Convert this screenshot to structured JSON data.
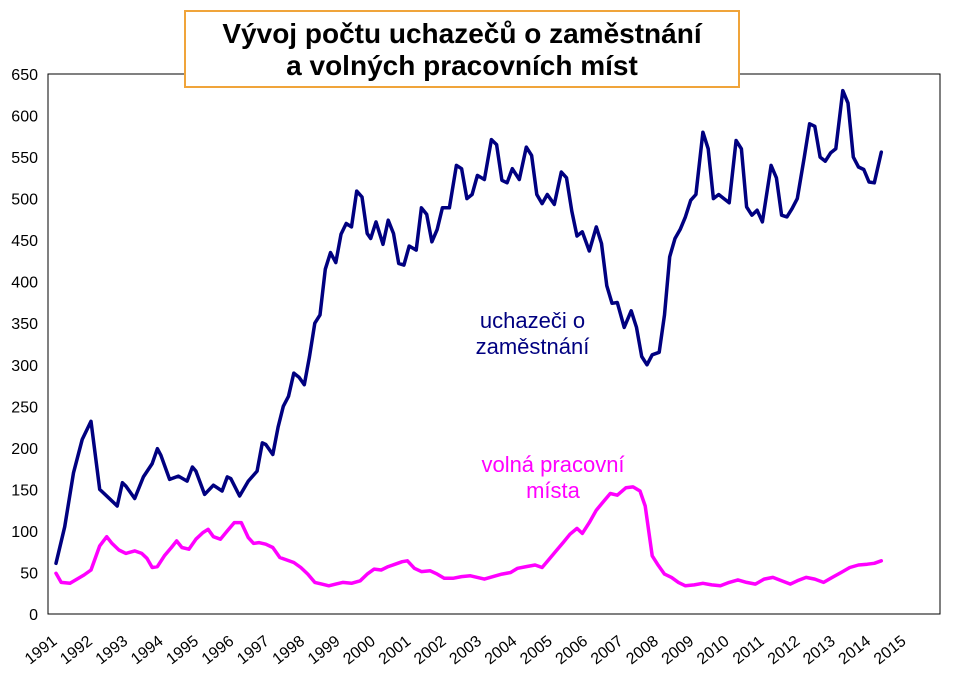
{
  "chart_data": {
    "type": "line",
    "title_lines": [
      "Vývoj počtu uchazečů o zaměstnání",
      "a volných pracovních míst"
    ],
    "xlabel": "",
    "ylabel": "",
    "ylim": [
      0,
      650
    ],
    "yticks": [
      0,
      50,
      100,
      150,
      200,
      250,
      300,
      350,
      400,
      450,
      500,
      550,
      600,
      650
    ],
    "x_tick_labels": [
      "1991",
      "1992",
      "1993",
      "1994",
      "1995",
      "1996",
      "1997",
      "1998",
      "1999",
      "2000",
      "2001",
      "2002",
      "2003",
      "2004",
      "2005",
      "2006",
      "2007",
      "2008",
      "2009",
      "2010",
      "2011",
      "2012",
      "2013",
      "2014",
      "2015"
    ],
    "x_range": [
      1991,
      2015.25
    ],
    "grid": false,
    "series": [
      {
        "name_lines": [
          "uchazeči o",
          "zaměstnání"
        ],
        "color": "#000080",
        "points": [
          [
            1991.0,
            61
          ],
          [
            1991.25,
            105
          ],
          [
            1991.5,
            170
          ],
          [
            1991.75,
            210
          ],
          [
            1992.0,
            232
          ],
          [
            1992.25,
            150
          ],
          [
            1992.5,
            140
          ],
          [
            1992.75,
            130
          ],
          [
            1992.9,
            158
          ],
          [
            1993.0,
            154
          ],
          [
            1993.25,
            139
          ],
          [
            1993.5,
            165
          ],
          [
            1993.75,
            181
          ],
          [
            1993.9,
            199
          ],
          [
            1994.0,
            191
          ],
          [
            1994.25,
            162
          ],
          [
            1994.5,
            166
          ],
          [
            1994.75,
            160
          ],
          [
            1994.9,
            177
          ],
          [
            1995.0,
            172
          ],
          [
            1995.25,
            144
          ],
          [
            1995.5,
            155
          ],
          [
            1995.75,
            148
          ],
          [
            1995.9,
            165
          ],
          [
            1996.0,
            163
          ],
          [
            1996.25,
            142
          ],
          [
            1996.5,
            160
          ],
          [
            1996.75,
            172
          ],
          [
            1996.9,
            206
          ],
          [
            1997.0,
            204
          ],
          [
            1997.2,
            192
          ],
          [
            1997.35,
            225
          ],
          [
            1997.5,
            250
          ],
          [
            1997.65,
            262
          ],
          [
            1997.8,
            290
          ],
          [
            1997.95,
            285
          ],
          [
            1998.1,
            276
          ],
          [
            1998.25,
            310
          ],
          [
            1998.4,
            350
          ],
          [
            1998.55,
            360
          ],
          [
            1998.7,
            415
          ],
          [
            1998.85,
            435
          ],
          [
            1999.0,
            423
          ],
          [
            1999.15,
            457
          ],
          [
            1999.3,
            470
          ],
          [
            1999.45,
            466
          ],
          [
            1999.6,
            509
          ],
          [
            1999.75,
            502
          ],
          [
            1999.9,
            458
          ],
          [
            2000.0,
            452
          ],
          [
            2000.15,
            472
          ],
          [
            2000.35,
            445
          ],
          [
            2000.5,
            474
          ],
          [
            2000.65,
            458
          ],
          [
            2000.8,
            422
          ],
          [
            2000.95,
            420
          ],
          [
            2001.1,
            443
          ],
          [
            2001.3,
            438
          ],
          [
            2001.45,
            489
          ],
          [
            2001.6,
            481
          ],
          [
            2001.75,
            448
          ],
          [
            2001.9,
            463
          ],
          [
            2002.05,
            489
          ],
          [
            2002.25,
            489
          ],
          [
            2002.45,
            540
          ],
          [
            2002.6,
            536
          ],
          [
            2002.75,
            500
          ],
          [
            2002.9,
            505
          ],
          [
            2003.05,
            528
          ],
          [
            2003.25,
            523
          ],
          [
            2003.45,
            571
          ],
          [
            2003.6,
            565
          ],
          [
            2003.75,
            522
          ],
          [
            2003.9,
            519
          ],
          [
            2004.05,
            536
          ],
          [
            2004.25,
            523
          ],
          [
            2004.45,
            562
          ],
          [
            2004.6,
            552
          ],
          [
            2004.75,
            505
          ],
          [
            2004.9,
            494
          ],
          [
            2005.05,
            505
          ],
          [
            2005.25,
            493
          ],
          [
            2005.45,
            532
          ],
          [
            2005.6,
            525
          ],
          [
            2005.75,
            485
          ],
          [
            2005.9,
            455
          ],
          [
            2006.05,
            460
          ],
          [
            2006.25,
            437
          ],
          [
            2006.45,
            466
          ],
          [
            2006.6,
            446
          ],
          [
            2006.75,
            395
          ],
          [
            2006.9,
            374
          ],
          [
            2007.05,
            375
          ],
          [
            2007.25,
            345
          ],
          [
            2007.45,
            365
          ],
          [
            2007.6,
            345
          ],
          [
            2007.75,
            310
          ],
          [
            2007.9,
            300
          ],
          [
            2008.05,
            312
          ],
          [
            2008.25,
            315
          ],
          [
            2008.4,
            360
          ],
          [
            2008.55,
            430
          ],
          [
            2008.7,
            452
          ],
          [
            2008.85,
            463
          ],
          [
            2009.0,
            478
          ],
          [
            2009.15,
            498
          ],
          [
            2009.3,
            505
          ],
          [
            2009.5,
            580
          ],
          [
            2009.65,
            560
          ],
          [
            2009.8,
            500
          ],
          [
            2009.95,
            505
          ],
          [
            2010.1,
            500
          ],
          [
            2010.25,
            495
          ],
          [
            2010.45,
            570
          ],
          [
            2010.6,
            560
          ],
          [
            2010.75,
            490
          ],
          [
            2010.9,
            480
          ],
          [
            2011.05,
            486
          ],
          [
            2011.2,
            472
          ],
          [
            2011.45,
            540
          ],
          [
            2011.6,
            525
          ],
          [
            2011.75,
            480
          ],
          [
            2011.9,
            478
          ],
          [
            2012.05,
            488
          ],
          [
            2012.2,
            500
          ],
          [
            2012.4,
            550
          ],
          [
            2012.55,
            590
          ],
          [
            2012.7,
            587
          ],
          [
            2012.85,
            550
          ],
          [
            2013.0,
            545
          ],
          [
            2013.15,
            555
          ],
          [
            2013.3,
            560
          ],
          [
            2013.5,
            630
          ],
          [
            2013.65,
            615
          ],
          [
            2013.8,
            550
          ],
          [
            2013.95,
            538
          ],
          [
            2014.1,
            535
          ],
          [
            2014.25,
            520
          ],
          [
            2014.4,
            519
          ],
          [
            2014.6,
            556
          ]
        ]
      },
      {
        "name_lines": [
          "volná pracovní",
          "místa"
        ],
        "color": "#ff00ff",
        "points": [
          [
            1991.0,
            49
          ],
          [
            1991.15,
            38
          ],
          [
            1991.4,
            37
          ],
          [
            1991.6,
            42
          ],
          [
            1991.8,
            47
          ],
          [
            1992.0,
            53
          ],
          [
            1992.25,
            82
          ],
          [
            1992.45,
            93
          ],
          [
            1992.6,
            85
          ],
          [
            1992.8,
            77
          ],
          [
            1993.0,
            73
          ],
          [
            1993.25,
            76
          ],
          [
            1993.45,
            73
          ],
          [
            1993.6,
            67
          ],
          [
            1993.75,
            56
          ],
          [
            1993.9,
            57
          ],
          [
            1994.1,
            70
          ],
          [
            1994.3,
            80
          ],
          [
            1994.45,
            88
          ],
          [
            1994.6,
            80
          ],
          [
            1994.8,
            78
          ],
          [
            1995.0,
            90
          ],
          [
            1995.2,
            98
          ],
          [
            1995.35,
            102
          ],
          [
            1995.5,
            93
          ],
          [
            1995.7,
            90
          ],
          [
            1995.9,
            100
          ],
          [
            1996.1,
            110
          ],
          [
            1996.3,
            110
          ],
          [
            1996.5,
            92
          ],
          [
            1996.65,
            85
          ],
          [
            1996.8,
            86
          ],
          [
            1997.0,
            84
          ],
          [
            1997.2,
            80
          ],
          [
            1997.4,
            68
          ],
          [
            1997.6,
            65
          ],
          [
            1997.8,
            62
          ],
          [
            1998.0,
            56
          ],
          [
            1998.2,
            48
          ],
          [
            1998.4,
            38
          ],
          [
            1998.6,
            36
          ],
          [
            1998.8,
            34
          ],
          [
            1999.0,
            36
          ],
          [
            1999.2,
            38
          ],
          [
            1999.45,
            37
          ],
          [
            1999.7,
            40
          ],
          [
            1999.9,
            48
          ],
          [
            2000.1,
            54
          ],
          [
            2000.3,
            53
          ],
          [
            2000.5,
            57
          ],
          [
            2000.7,
            60
          ],
          [
            2000.9,
            63
          ],
          [
            2001.05,
            64
          ],
          [
            2001.25,
            55
          ],
          [
            2001.45,
            51
          ],
          [
            2001.7,
            52
          ],
          [
            2001.9,
            48
          ],
          [
            2002.1,
            43
          ],
          [
            2002.35,
            43
          ],
          [
            2002.6,
            45
          ],
          [
            2002.85,
            46
          ],
          [
            2003.05,
            44
          ],
          [
            2003.25,
            42
          ],
          [
            2003.5,
            45
          ],
          [
            2003.75,
            48
          ],
          [
            2004.0,
            50
          ],
          [
            2004.2,
            55
          ],
          [
            2004.45,
            57
          ],
          [
            2004.7,
            59
          ],
          [
            2004.9,
            56
          ],
          [
            2005.1,
            66
          ],
          [
            2005.3,
            76
          ],
          [
            2005.5,
            86
          ],
          [
            2005.7,
            96
          ],
          [
            2005.9,
            103
          ],
          [
            2006.05,
            97
          ],
          [
            2006.25,
            110
          ],
          [
            2006.45,
            125
          ],
          [
            2006.65,
            135
          ],
          [
            2006.85,
            145
          ],
          [
            2007.05,
            143
          ],
          [
            2007.3,
            152
          ],
          [
            2007.5,
            153
          ],
          [
            2007.7,
            148
          ],
          [
            2007.85,
            130
          ],
          [
            2007.95,
            100
          ],
          [
            2008.05,
            70
          ],
          [
            2008.2,
            60
          ],
          [
            2008.4,
            48
          ],
          [
            2008.6,
            44
          ],
          [
            2008.8,
            38
          ],
          [
            2009.0,
            34
          ],
          [
            2009.25,
            35
          ],
          [
            2009.5,
            37
          ],
          [
            2009.75,
            35
          ],
          [
            2010.0,
            34
          ],
          [
            2010.25,
            38
          ],
          [
            2010.5,
            41
          ],
          [
            2010.75,
            38
          ],
          [
            2011.0,
            36
          ],
          [
            2011.25,
            42
          ],
          [
            2011.5,
            44
          ],
          [
            2011.75,
            40
          ],
          [
            2012.0,
            36
          ],
          [
            2012.2,
            40
          ],
          [
            2012.45,
            44
          ],
          [
            2012.7,
            42
          ],
          [
            2012.95,
            38
          ],
          [
            2013.2,
            44
          ],
          [
            2013.45,
            50
          ],
          [
            2013.7,
            56
          ],
          [
            2013.95,
            59
          ],
          [
            2014.2,
            60
          ],
          [
            2014.4,
            61
          ],
          [
            2014.6,
            64
          ]
        ]
      }
    ]
  }
}
